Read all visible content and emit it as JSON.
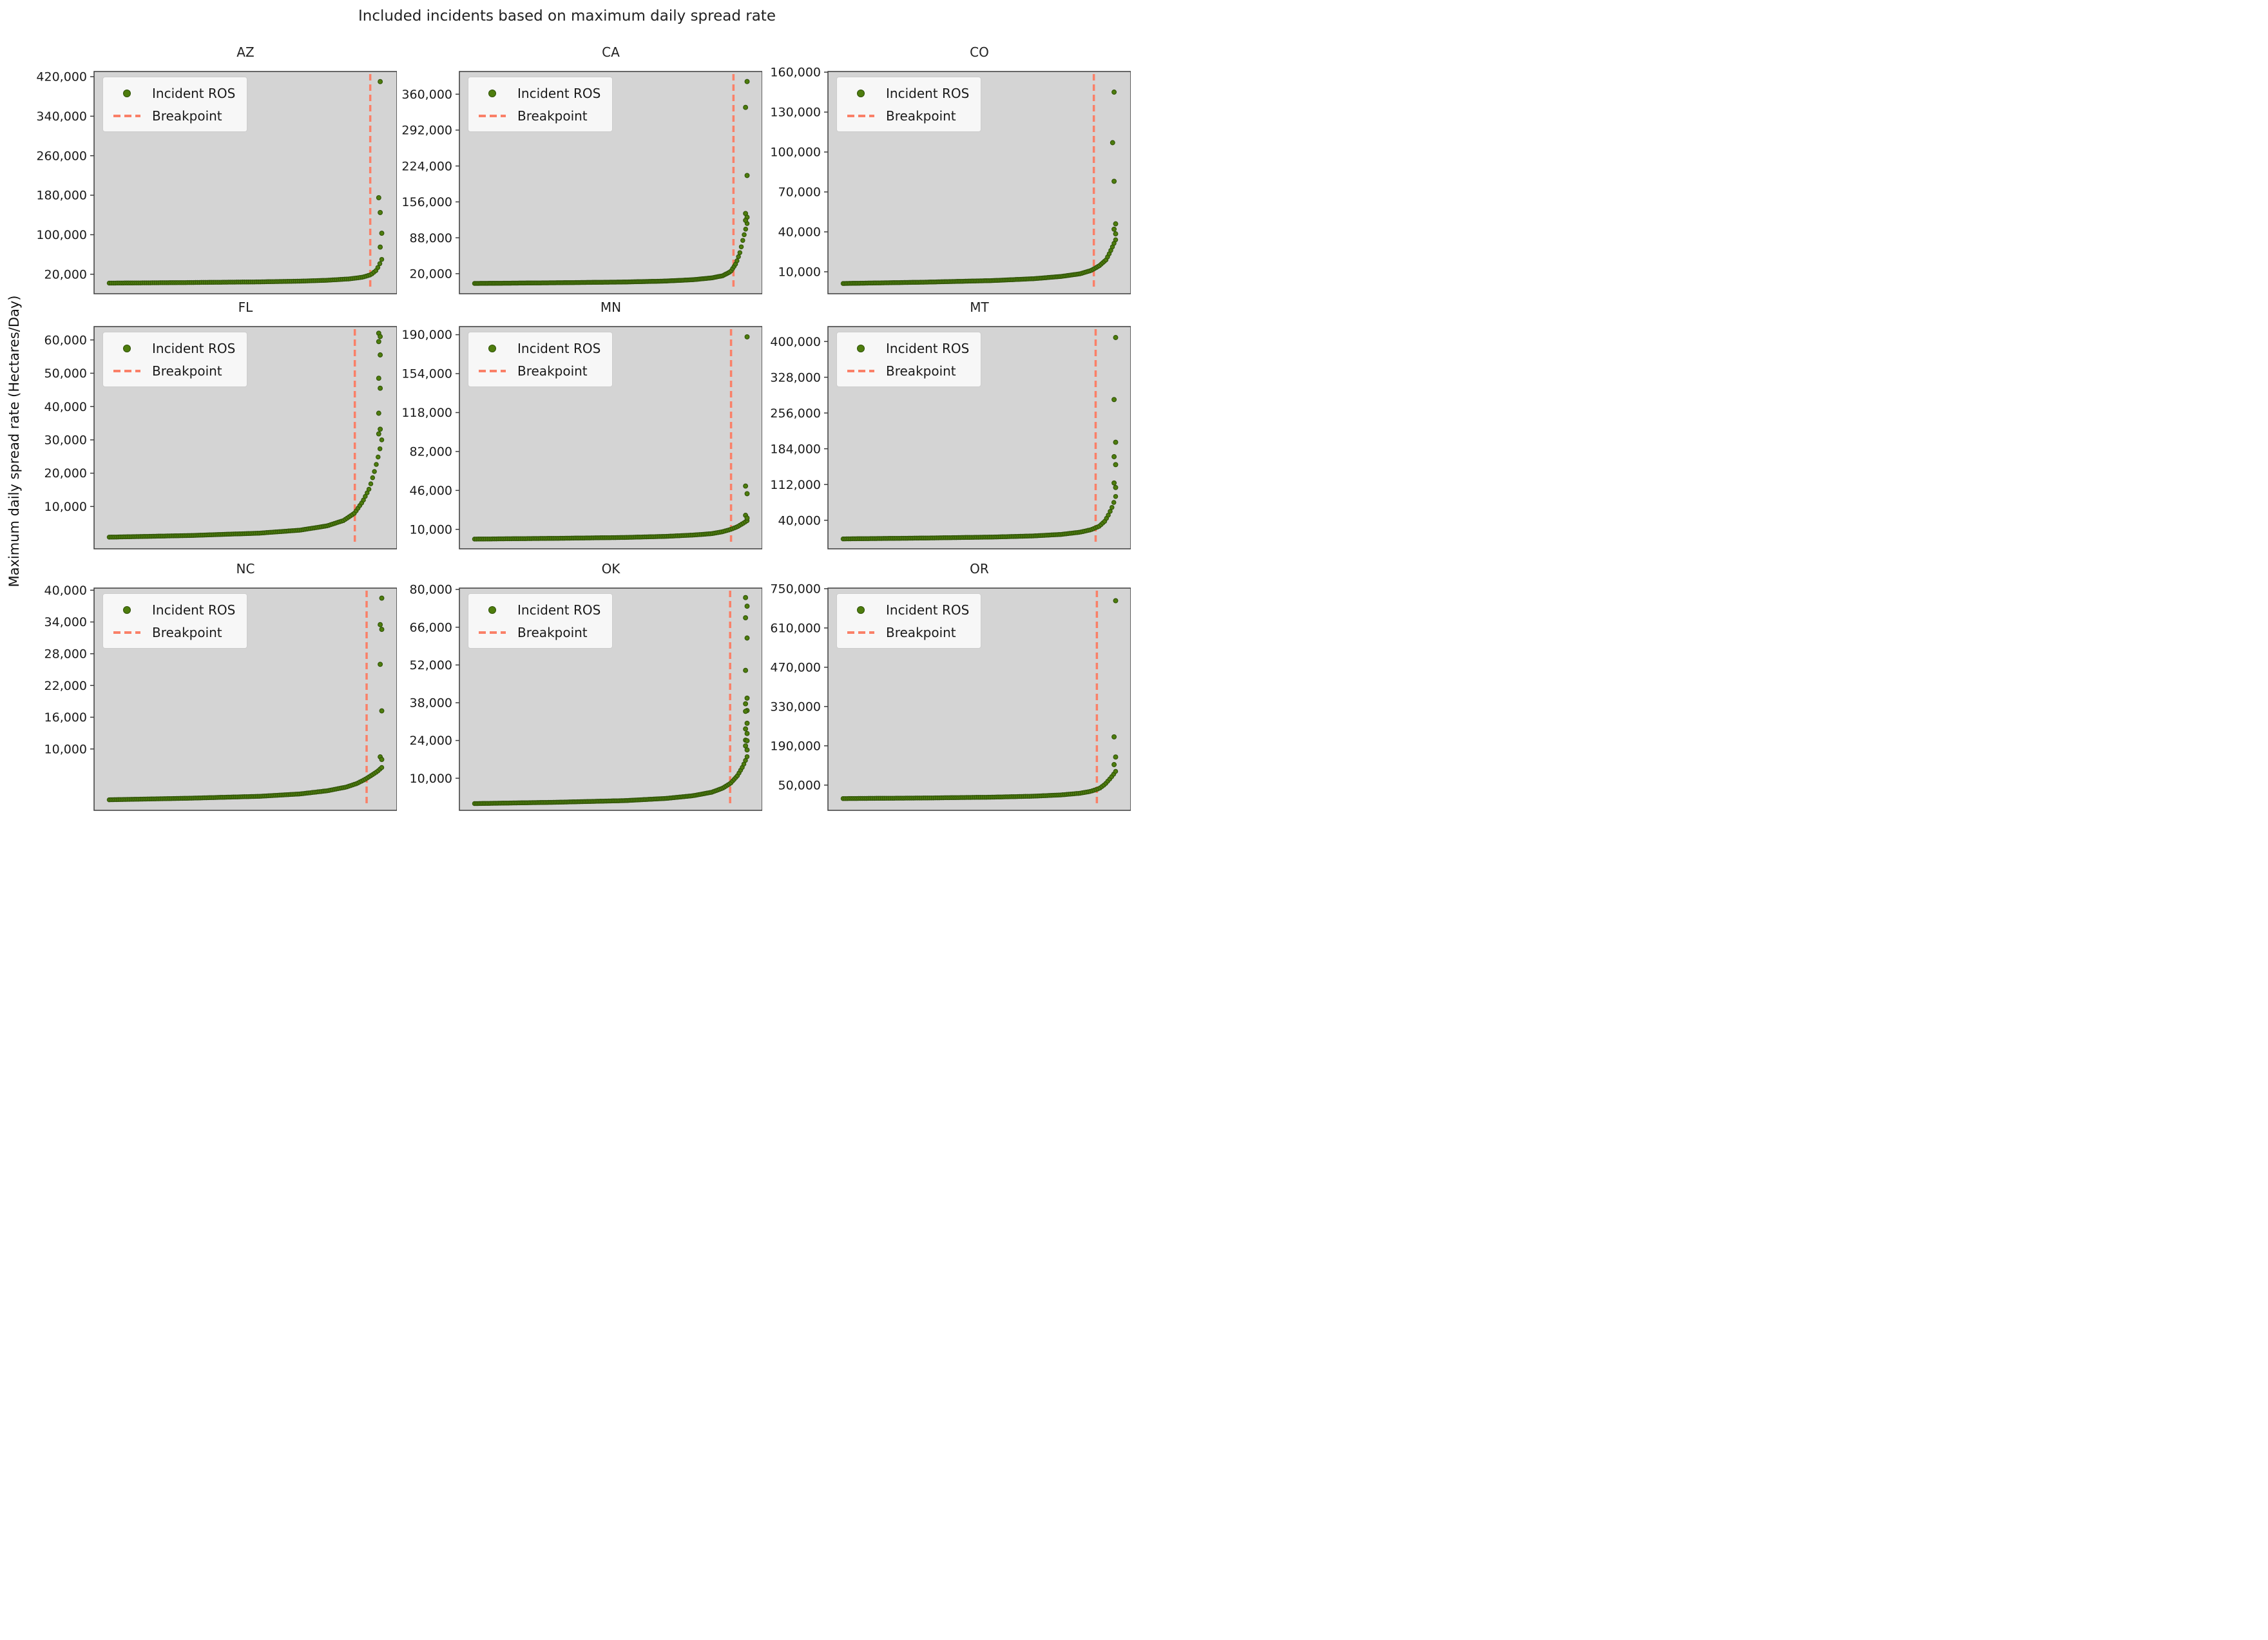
{
  "figure": {
    "title": "Included incidents based on maximum daily spread rate",
    "ylabel": "Maximum daily spread rate (Hectares/Day)",
    "grid": false,
    "legend_position": "upper left",
    "x_tick_labels": "none"
  },
  "legend": {
    "incident_label": "Incident ROS",
    "breakpoint_label": "Breakpoint"
  },
  "style": {
    "point_color": "#4e7d0d",
    "point_edge": "#2f5208",
    "breakpoint_color": "#fa8068",
    "axes_bg": "#d4d4d4",
    "fig_bg": "#ffffff",
    "spine_color": "#3c3c3c",
    "tick_text_color": "#1a1a1a"
  },
  "chart_data": [
    {
      "type": "scatter",
      "title": "AZ",
      "yticks": [
        20000,
        100000,
        180000,
        260000,
        340000,
        420000
      ],
      "ylim": [
        -19500,
        430500
      ],
      "xticks": [],
      "breakpoint_x_frac": 0.912,
      "n_points": 140,
      "curve_profile": [
        [
          0,
          2000
        ],
        [
          0.3,
          3200
        ],
        [
          0.55,
          4500
        ],
        [
          0.7,
          6000
        ],
        [
          0.8,
          7800
        ],
        [
          0.88,
          10500
        ],
        [
          0.93,
          14000
        ],
        [
          0.96,
          19000
        ],
        [
          0.98,
          28000
        ],
        [
          0.99,
          38000
        ],
        [
          1,
          50000
        ]
      ],
      "outliers": [
        [
          0.945,
          410000
        ],
        [
          0.94,
          175000
        ],
        [
          0.945,
          145000
        ],
        [
          0.95,
          103000
        ],
        [
          0.945,
          75000
        ]
      ]
    },
    {
      "type": "scatter",
      "title": "CA",
      "yticks": [
        20000,
        88000,
        156000,
        224000,
        292000,
        360000
      ],
      "ylim": [
        -18000,
        403000
      ],
      "xticks": [],
      "breakpoint_x_frac": 0.905,
      "n_points": 190,
      "curve_profile": [
        [
          0,
          1500
        ],
        [
          0.3,
          2800
        ],
        [
          0.55,
          4200
        ],
        [
          0.7,
          6000
        ],
        [
          0.8,
          8500
        ],
        [
          0.87,
          12000
        ],
        [
          0.91,
          16000
        ],
        [
          0.94,
          24000
        ],
        [
          0.96,
          40000
        ],
        [
          0.975,
          62000
        ],
        [
          0.985,
          85000
        ],
        [
          1,
          115000
        ]
      ],
      "outliers": [
        [
          0.95,
          384000
        ],
        [
          0.945,
          335000
        ],
        [
          0.95,
          206000
        ],
        [
          0.945,
          134000
        ],
        [
          0.95,
          127000
        ],
        [
          0.945,
          121000
        ]
      ]
    },
    {
      "type": "scatter",
      "title": "CO",
      "yticks": [
        10000,
        40000,
        70000,
        100000,
        130000,
        160000
      ],
      "ylim": [
        -6500,
        160500
      ],
      "xticks": [],
      "breakpoint_x_frac": 0.878,
      "n_points": 170,
      "curve_profile": [
        [
          0,
          1200
        ],
        [
          0.3,
          2200
        ],
        [
          0.55,
          3400
        ],
        [
          0.7,
          4800
        ],
        [
          0.8,
          6500
        ],
        [
          0.87,
          8500
        ],
        [
          0.91,
          11000
        ],
        [
          0.94,
          14500
        ],
        [
          0.965,
          19000
        ],
        [
          0.98,
          25000
        ],
        [
          1,
          34000
        ]
      ],
      "outliers": [
        [
          0.945,
          145000
        ],
        [
          0.94,
          107000
        ],
        [
          0.945,
          78000
        ],
        [
          0.95,
          46000
        ],
        [
          0.945,
          42000
        ],
        [
          0.95,
          38500
        ]
      ]
    },
    {
      "type": "scatter",
      "title": "FL",
      "yticks": [
        10000,
        20000,
        30000,
        40000,
        50000,
        60000
      ],
      "ylim": [
        -2700,
        64000
      ],
      "xticks": [],
      "breakpoint_x_frac": 0.861,
      "n_points": 150,
      "curve_profile": [
        [
          0,
          800
        ],
        [
          0.3,
          1300
        ],
        [
          0.55,
          2000
        ],
        [
          0.7,
          2900
        ],
        [
          0.8,
          4200
        ],
        [
          0.86,
          5800
        ],
        [
          0.9,
          8000
        ],
        [
          0.93,
          11500
        ],
        [
          0.955,
          15500
        ],
        [
          0.975,
          21000
        ],
        [
          0.99,
          26000
        ],
        [
          1,
          30000
        ]
      ],
      "outliers": [
        [
          0.94,
          62000
        ],
        [
          0.945,
          61000
        ],
        [
          0.94,
          59500
        ],
        [
          0.945,
          55500
        ],
        [
          0.94,
          48500
        ],
        [
          0.945,
          45500
        ],
        [
          0.94,
          38000
        ],
        [
          0.945,
          33200
        ],
        [
          0.94,
          31800
        ]
      ]
    },
    {
      "type": "scatter",
      "title": "MN",
      "yticks": [
        10000,
        46000,
        82000,
        118000,
        154000,
        190000
      ],
      "ylim": [
        -8000,
        197500
      ],
      "xticks": [],
      "breakpoint_x_frac": 0.897,
      "n_points": 150,
      "curve_profile": [
        [
          0,
          1000
        ],
        [
          0.3,
          1700
        ],
        [
          0.55,
          2500
        ],
        [
          0.7,
          3500
        ],
        [
          0.8,
          4700
        ],
        [
          0.87,
          6000
        ],
        [
          0.91,
          7800
        ],
        [
          0.94,
          10000
        ],
        [
          0.965,
          12500
        ],
        [
          0.985,
          15500
        ],
        [
          1,
          18000
        ]
      ],
      "outliers": [
        [
          0.95,
          188000
        ],
        [
          0.945,
          50000
        ],
        [
          0.95,
          43000
        ],
        [
          0.945,
          23000
        ],
        [
          0.95,
          20500
        ]
      ]
    },
    {
      "type": "scatter",
      "title": "MT",
      "yticks": [
        40000,
        112000,
        184000,
        256000,
        328000,
        400000
      ],
      "ylim": [
        -17500,
        430000
      ],
      "xticks": [],
      "breakpoint_x_frac": 0.884,
      "n_points": 150,
      "curve_profile": [
        [
          0,
          2500
        ],
        [
          0.3,
          4200
        ],
        [
          0.55,
          6200
        ],
        [
          0.7,
          8500
        ],
        [
          0.8,
          11500
        ],
        [
          0.87,
          16000
        ],
        [
          0.91,
          21000
        ],
        [
          0.94,
          28000
        ],
        [
          0.96,
          38000
        ],
        [
          0.975,
          52000
        ],
        [
          0.99,
          70000
        ],
        [
          1,
          88000
        ]
      ],
      "outliers": [
        [
          0.95,
          408000
        ],
        [
          0.945,
          283000
        ],
        [
          0.95,
          197000
        ],
        [
          0.945,
          168000
        ],
        [
          0.95,
          152000
        ],
        [
          0.945,
          115000
        ],
        [
          0.95,
          106000
        ]
      ]
    },
    {
      "type": "scatter",
      "title": "NC",
      "yticks": [
        10000,
        16000,
        22000,
        28000,
        34000,
        40000
      ],
      "ylim": [
        -1600,
        40400
      ],
      "xticks": [],
      "breakpoint_x_frac": 0.9,
      "n_points": 150,
      "curve_profile": [
        [
          0,
          400
        ],
        [
          0.3,
          700
        ],
        [
          0.55,
          1050
        ],
        [
          0.7,
          1500
        ],
        [
          0.8,
          2100
        ],
        [
          0.87,
          2800
        ],
        [
          0.91,
          3500
        ],
        [
          0.94,
          4300
        ],
        [
          0.965,
          5100
        ],
        [
          0.985,
          5800
        ],
        [
          1,
          6500
        ]
      ],
      "outliers": [
        [
          0.95,
          38500
        ],
        [
          0.945,
          33500
        ],
        [
          0.95,
          32600
        ],
        [
          0.945,
          26000
        ],
        [
          0.95,
          17200
        ],
        [
          0.945,
          8500
        ],
        [
          0.95,
          8000
        ]
      ]
    },
    {
      "type": "scatter",
      "title": "OK",
      "yticks": [
        10000,
        24000,
        38000,
        52000,
        66000,
        80000
      ],
      "ylim": [
        -1900,
        80500
      ],
      "xticks": [],
      "breakpoint_x_frac": 0.894,
      "n_points": 170,
      "curve_profile": [
        [
          0,
          600
        ],
        [
          0.3,
          1100
        ],
        [
          0.55,
          1700
        ],
        [
          0.7,
          2500
        ],
        [
          0.8,
          3500
        ],
        [
          0.87,
          4800
        ],
        [
          0.91,
          6300
        ],
        [
          0.94,
          8200
        ],
        [
          0.965,
          11000
        ],
        [
          0.985,
          14500
        ],
        [
          1,
          18000
        ]
      ],
      "outliers": [
        [
          0.945,
          77000
        ],
        [
          0.95,
          73800
        ],
        [
          0.945,
          69500
        ],
        [
          0.95,
          62000
        ],
        [
          0.945,
          50000
        ],
        [
          0.95,
          39700
        ],
        [
          0.945,
          37600
        ],
        [
          0.95,
          35100
        ],
        [
          0.945,
          34800
        ],
        [
          0.95,
          30400
        ],
        [
          0.945,
          28300
        ],
        [
          0.95,
          26600
        ],
        [
          0.945,
          24100
        ],
        [
          0.95,
          23900
        ],
        [
          0.945,
          22000
        ],
        [
          0.95,
          20500
        ]
      ]
    },
    {
      "type": "scatter",
      "title": "OR",
      "yticks": [
        50000,
        190000,
        330000,
        470000,
        610000,
        750000
      ],
      "ylim": [
        -40000,
        752000
      ],
      "xticks": [],
      "breakpoint_x_frac": 0.888,
      "n_points": 140,
      "curve_profile": [
        [
          0,
          2000
        ],
        [
          0.3,
          4000
        ],
        [
          0.55,
          7000
        ],
        [
          0.7,
          10500
        ],
        [
          0.8,
          15000
        ],
        [
          0.87,
          21000
        ],
        [
          0.91,
          28000
        ],
        [
          0.94,
          38000
        ],
        [
          0.96,
          52000
        ],
        [
          0.975,
          68000
        ],
        [
          0.99,
          85000
        ],
        [
          1,
          99000
        ]
      ],
      "outliers": [
        [
          0.95,
          707000
        ],
        [
          0.945,
          222000
        ],
        [
          0.95,
          150000
        ],
        [
          0.945,
          123000
        ]
      ]
    }
  ]
}
